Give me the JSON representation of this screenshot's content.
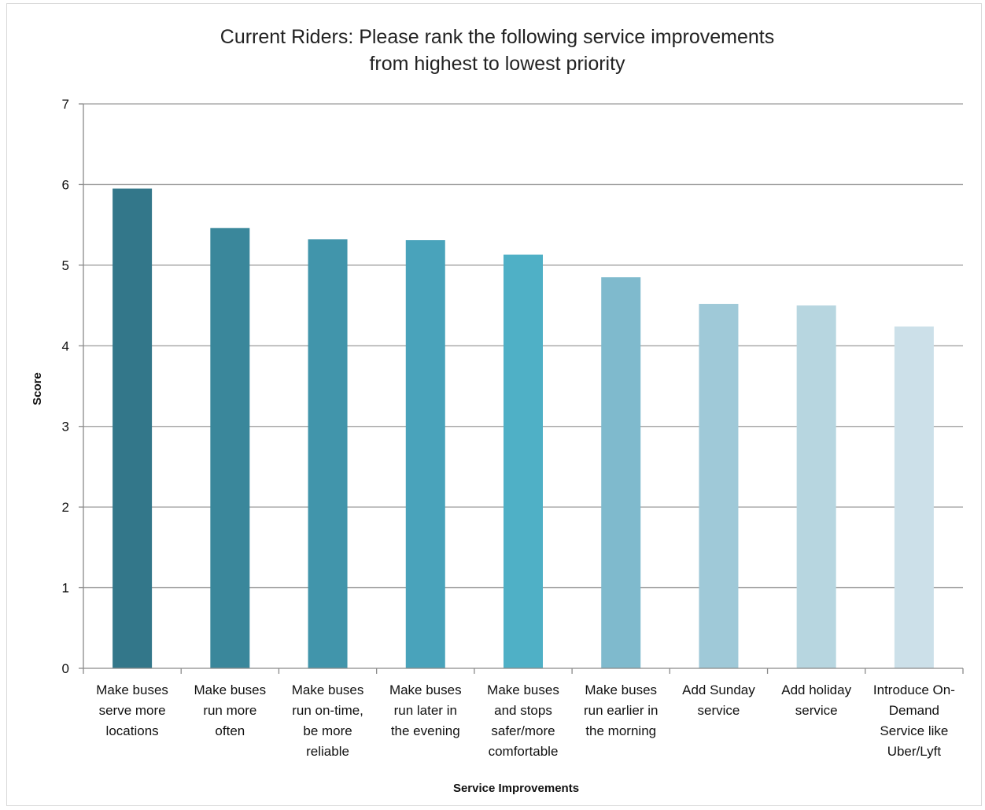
{
  "chart_data": {
    "type": "bar",
    "title": [
      "Current Riders: Please rank the following service improvements",
      "from highest to lowest priority"
    ],
    "xlabel": "Service Improvements",
    "ylabel": "Score",
    "ylim": [
      0,
      7
    ],
    "yticks": [
      0,
      1,
      2,
      3,
      4,
      5,
      6,
      7
    ],
    "grid": true,
    "legend": "none",
    "categories": [
      [
        "Make buses",
        "serve more",
        "locations"
      ],
      [
        "Make buses",
        "run more",
        "often"
      ],
      [
        "Make buses",
        "run on-time,",
        "be more",
        "reliable"
      ],
      [
        "Make buses",
        "run later in",
        "the evening"
      ],
      [
        "Make buses",
        "and stops",
        "safer/more",
        "comfortable"
      ],
      [
        "Make buses",
        "run earlier in",
        "the morning"
      ],
      [
        "Add Sunday",
        "service"
      ],
      [
        "Add holiday",
        "service"
      ],
      [
        "Introduce On-",
        "Demand",
        "Service like",
        "Uber/Lyft"
      ]
    ],
    "values": [
      5.95,
      5.46,
      5.32,
      5.31,
      5.13,
      4.85,
      4.52,
      4.5,
      4.24
    ],
    "colors": [
      "#33778a",
      "#3a879b",
      "#4195ab",
      "#49a3bb",
      "#4fb0c6",
      "#7fbacd",
      "#9fc9d8",
      "#b7d6e0",
      "#cce0e9"
    ]
  }
}
